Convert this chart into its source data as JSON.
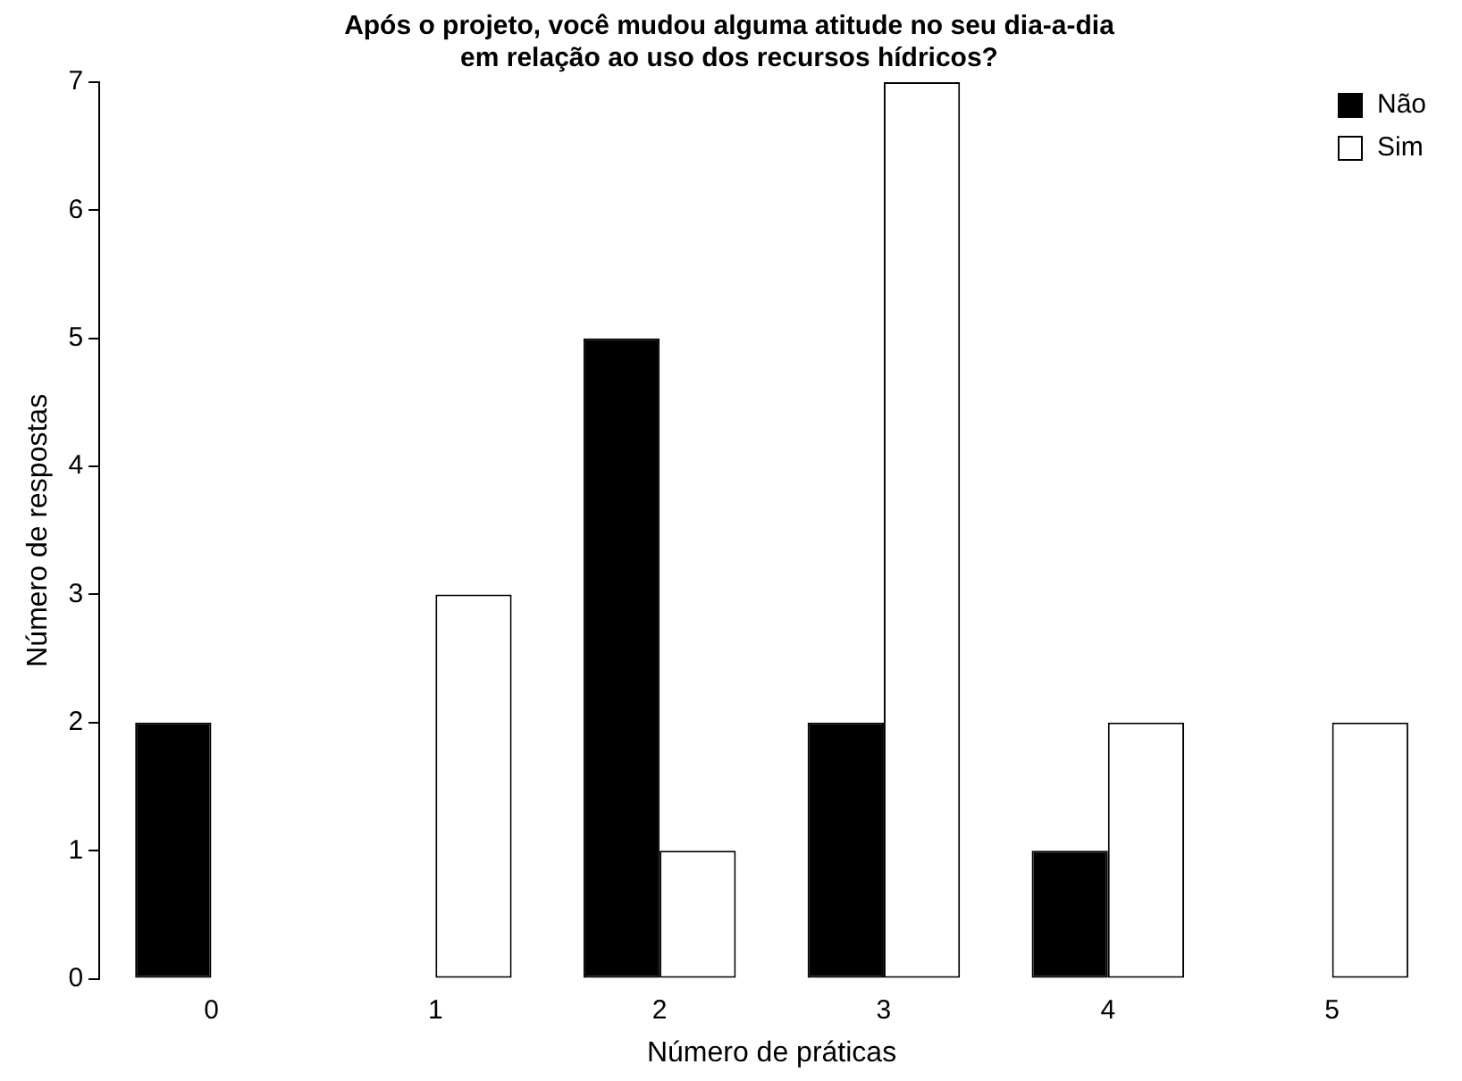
{
  "chart_data": {
    "type": "bar",
    "title": "Após o projeto, você mudou alguma atitude no seu dia-a-dia\nem relação ao uso dos recursos hídricos?",
    "xlabel": "Número de práticas",
    "ylabel": "Número de respostas",
    "categories": [
      "0",
      "1",
      "2",
      "3",
      "4",
      "5"
    ],
    "series": [
      {
        "name": "Não",
        "color": "#000000",
        "values": [
          2,
          0,
          5,
          2,
          1,
          0
        ]
      },
      {
        "name": "Sim",
        "color": "#ffffff",
        "values": [
          0,
          3,
          1,
          7,
          2,
          2
        ]
      }
    ],
    "ylim": [
      0,
      7
    ],
    "yticks": [
      0,
      1,
      2,
      3,
      4,
      5,
      6,
      7
    ],
    "grid": false,
    "legend": "top right"
  }
}
